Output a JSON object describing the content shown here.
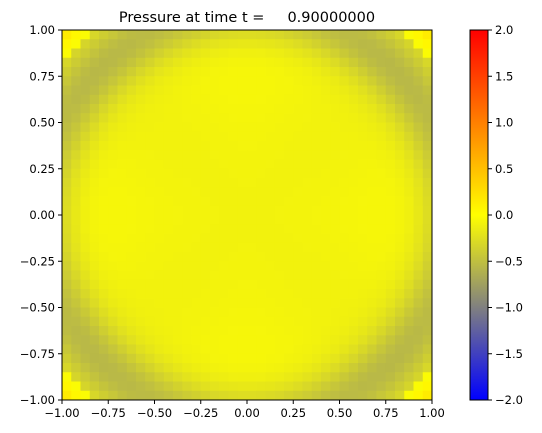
{
  "chart_data": {
    "type": "heatmap",
    "title": "Pressure at time t =     0.90000000",
    "xlabel": "",
    "ylabel": "",
    "xlim": [
      -1.0,
      1.0
    ],
    "ylim": [
      -1.0,
      1.0
    ],
    "x_ticks": [
      "−1.00",
      "−0.75",
      "−0.50",
      "−0.25",
      "0.00",
      "0.25",
      "0.50",
      "0.75",
      "1.00"
    ],
    "y_ticks": [
      "−1.00",
      "−0.75",
      "−0.50",
      "−0.25",
      "0.00",
      "0.25",
      "0.50",
      "0.75",
      "1.00"
    ],
    "grid": "off",
    "field": {
      "nx": 40,
      "ny": 40,
      "description_values": "pressure field: near 0 in interior, ring of about -0.4 at radius ~1.1, corners ~ +0.3",
      "interior_value": -0.1,
      "ring_radius": 1.12,
      "ring_width": 0.18,
      "ring_value": -0.55,
      "corner_value": 0.35
    },
    "colorbar": {
      "min": -2.0,
      "max": 2.0,
      "ticks": [
        "−2.0",
        "−1.5",
        "−1.0",
        "−0.5",
        "0.0",
        "0.5",
        "1.0",
        "1.5",
        "2.0"
      ],
      "colormap": [
        "#0000ff",
        "#808080",
        "#ffff00",
        "#ff0000"
      ]
    }
  }
}
